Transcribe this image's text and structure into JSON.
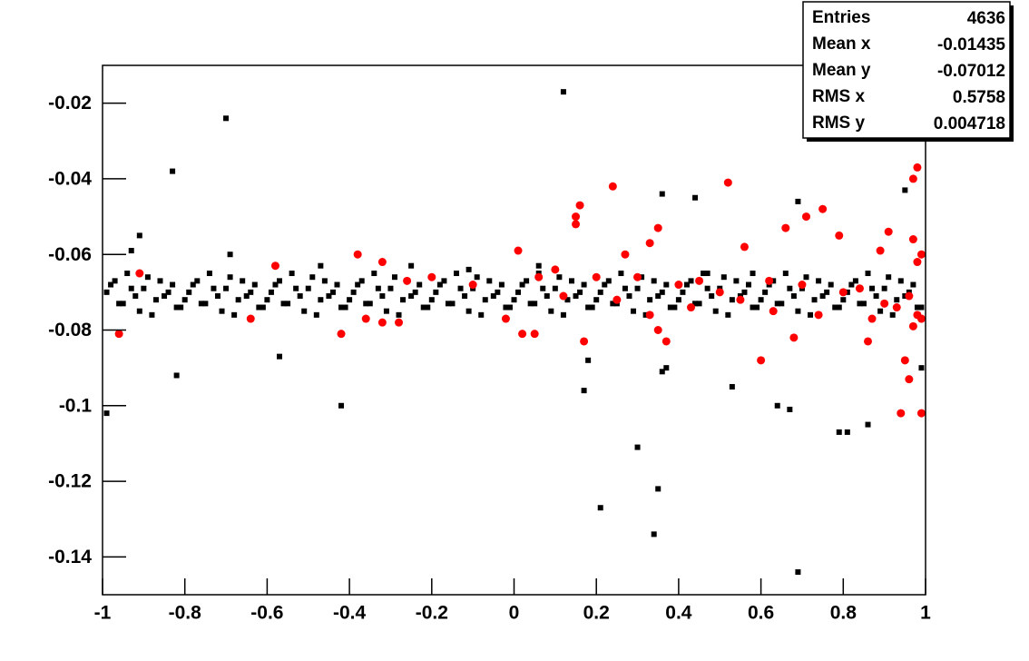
{
  "chart_data": {
    "type": "scatter",
    "xlim": [
      -1,
      1
    ],
    "ylim": [
      -0.15,
      -0.01
    ],
    "xticks": [
      -1,
      -0.8,
      -0.6,
      -0.4,
      -0.2,
      0,
      0.2,
      0.4,
      0.6,
      0.8,
      1
    ],
    "yticks": [
      -0.02,
      -0.04,
      -0.06,
      -0.08,
      -0.1,
      -0.12,
      -0.14
    ],
    "stats": [
      {
        "label": "Entries",
        "value": 4636
      },
      {
        "label": "Mean x",
        "value": -0.01435
      },
      {
        "label": "Mean y",
        "value": -0.07012
      },
      {
        "label": "RMS x",
        "value": 0.5758
      },
      {
        "label": "RMS y",
        "value": 0.004718
      }
    ],
    "series": [
      {
        "color": "#000000",
        "marker": "square",
        "x": [
          -0.99,
          -0.97,
          -0.95,
          -0.93,
          -0.91,
          -0.89,
          -0.87,
          -0.85,
          -0.83,
          -0.81,
          -0.79,
          -0.77,
          -0.75,
          -0.73,
          -0.71,
          -0.69,
          -0.67,
          -0.65,
          -0.63,
          -0.61,
          -0.59,
          -0.57,
          -0.55,
          -0.53,
          -0.51,
          -0.49,
          -0.47,
          -0.45,
          -0.43,
          -0.41,
          -0.39,
          -0.37,
          -0.35,
          -0.33,
          -0.31,
          -0.29,
          -0.27,
          -0.25,
          -0.23,
          -0.21,
          -0.19,
          -0.17,
          -0.15,
          -0.13,
          -0.11,
          -0.09,
          -0.07,
          -0.05,
          -0.03,
          -0.01,
          0.01,
          0.03,
          0.05,
          0.07,
          0.09,
          0.11,
          0.13,
          0.15,
          0.17,
          0.19,
          0.21,
          0.23,
          0.25,
          0.27,
          0.29,
          0.31,
          0.33,
          0.35,
          0.37,
          0.39,
          0.41,
          0.43,
          0.45,
          0.47,
          0.49,
          0.51,
          0.53,
          0.55,
          0.57,
          0.59,
          0.61,
          0.63,
          0.65,
          0.67,
          0.69,
          0.71,
          0.73,
          0.75,
          0.77,
          0.79,
          0.81,
          0.83,
          0.85,
          0.87,
          0.89,
          0.91,
          0.93,
          0.95,
          0.97,
          0.99
        ],
        "y": [
          -0.07,
          -0.067,
          -0.073,
          -0.069,
          -0.075,
          -0.066,
          -0.072,
          -0.071,
          -0.068,
          -0.074,
          -0.07,
          -0.067,
          -0.073,
          -0.069,
          -0.075,
          -0.066,
          -0.072,
          -0.071,
          -0.068,
          -0.074,
          -0.07,
          -0.067,
          -0.073,
          -0.069,
          -0.075,
          -0.066,
          -0.072,
          -0.071,
          -0.068,
          -0.074,
          -0.07,
          -0.067,
          -0.073,
          -0.069,
          -0.075,
          -0.066,
          -0.072,
          -0.071,
          -0.068,
          -0.074,
          -0.07,
          -0.067,
          -0.073,
          -0.069,
          -0.075,
          -0.066,
          -0.072,
          -0.071,
          -0.068,
          -0.074,
          -0.07,
          -0.067,
          -0.073,
          -0.069,
          -0.075,
          -0.066,
          -0.072,
          -0.071,
          -0.068,
          -0.074,
          -0.07,
          -0.067,
          -0.073,
          -0.069,
          -0.075,
          -0.066,
          -0.072,
          -0.071,
          -0.068,
          -0.074,
          -0.07,
          -0.067,
          -0.073,
          -0.069,
          -0.075,
          -0.066,
          -0.072,
          -0.071,
          -0.068,
          -0.074,
          -0.07,
          -0.067,
          -0.073,
          -0.069,
          -0.075,
          -0.066,
          -0.072,
          -0.071,
          -0.068,
          -0.074,
          -0.07,
          -0.067,
          -0.073,
          -0.069,
          -0.075,
          -0.066,
          -0.072,
          -0.071,
          -0.068,
          -0.074
        ]
      },
      {
        "color": "#000000",
        "marker": "square",
        "x": [
          -0.98,
          -0.96,
          -0.94,
          -0.92,
          -0.9,
          -0.88,
          -0.86,
          -0.84,
          -0.82,
          -0.8,
          -0.78,
          -0.76,
          -0.74,
          -0.72,
          -0.7,
          -0.68,
          -0.66,
          -0.64,
          -0.62,
          -0.6,
          -0.58,
          -0.56,
          -0.54,
          -0.52,
          -0.5,
          -0.48,
          -0.46,
          -0.44,
          -0.42,
          -0.4,
          -0.38,
          -0.36,
          -0.34,
          -0.32,
          -0.3,
          -0.28,
          -0.26,
          -0.24,
          -0.22,
          -0.2,
          -0.18,
          -0.16,
          -0.14,
          -0.12,
          -0.1,
          -0.08,
          -0.06,
          -0.04,
          -0.02,
          0,
          0.02,
          0.04,
          0.06,
          0.08,
          0.1,
          0.12,
          0.14,
          0.16,
          0.18,
          0.2,
          0.22,
          0.24,
          0.26,
          0.28,
          0.3,
          0.32,
          0.34,
          0.36,
          0.38,
          0.4,
          0.42,
          0.44,
          0.46,
          0.48,
          0.5,
          0.52,
          0.54,
          0.56,
          0.58,
          0.6,
          0.62,
          0.64,
          0.66,
          0.68,
          0.7,
          0.72,
          0.74,
          0.76,
          0.78,
          0.8,
          0.82,
          0.84,
          0.86,
          0.88,
          0.9,
          0.92,
          0.94,
          0.96,
          0.98
        ],
        "y": [
          -0.068,
          -0.073,
          -0.065,
          -0.071,
          -0.069,
          -0.076,
          -0.067,
          -0.07,
          -0.074,
          -0.072,
          -0.068,
          -0.073,
          -0.065,
          -0.071,
          -0.069,
          -0.076,
          -0.067,
          -0.07,
          -0.074,
          -0.072,
          -0.068,
          -0.073,
          -0.065,
          -0.071,
          -0.069,
          -0.076,
          -0.067,
          -0.07,
          -0.074,
          -0.072,
          -0.068,
          -0.073,
          -0.065,
          -0.071,
          -0.069,
          -0.076,
          -0.067,
          -0.07,
          -0.074,
          -0.072,
          -0.068,
          -0.073,
          -0.065,
          -0.071,
          -0.069,
          -0.076,
          -0.067,
          -0.07,
          -0.074,
          -0.072,
          -0.068,
          -0.073,
          -0.065,
          -0.071,
          -0.069,
          -0.076,
          -0.067,
          -0.07,
          -0.074,
          -0.072,
          -0.068,
          -0.073,
          -0.065,
          -0.071,
          -0.069,
          -0.076,
          -0.067,
          -0.07,
          -0.074,
          -0.072,
          -0.068,
          -0.073,
          -0.065,
          -0.071,
          -0.069,
          -0.076,
          -0.067,
          -0.07,
          -0.074,
          -0.072,
          -0.068,
          -0.073,
          -0.065,
          -0.071,
          -0.069,
          -0.076,
          -0.067,
          -0.07,
          -0.074,
          -0.072,
          -0.068,
          -0.073,
          -0.065,
          -0.071,
          -0.069,
          -0.076,
          -0.067,
          -0.07,
          -0.074
        ]
      },
      {
        "color": "#000000",
        "marker": "square",
        "x": [
          -0.7,
          -0.83,
          0.12,
          -0.82,
          -0.42,
          -0.99,
          0.21,
          0.35,
          0.34,
          0.69,
          0.3,
          0.17,
          0.53,
          0.67,
          0.79,
          0.81,
          0.86,
          0.99,
          0.37,
          0.36,
          0.95,
          0.36,
          0.44,
          0.69,
          -0.91,
          -0.93,
          -0.57,
          0.18,
          -0.11,
          -0.25,
          -0.69,
          0.64,
          0.58,
          0.47,
          0.06,
          -0.47
        ],
        "y": [
          -0.024,
          -0.038,
          -0.017,
          -0.092,
          -0.1,
          -0.102,
          -0.127,
          -0.122,
          -0.134,
          -0.144,
          -0.111,
          -0.096,
          -0.095,
          -0.101,
          -0.107,
          -0.107,
          -0.105,
          -0.09,
          -0.09,
          -0.091,
          -0.043,
          -0.044,
          -0.045,
          -0.046,
          -0.055,
          -0.059,
          -0.087,
          -0.088,
          -0.064,
          -0.063,
          -0.06,
          -0.1,
          -0.065,
          -0.065,
          -0.063,
          -0.063
        ]
      },
      {
        "color": "#ff0000",
        "marker": "circle",
        "x": [
          0.24,
          0.52,
          0.98,
          0.97,
          0.15,
          0.16,
          0.15,
          0.33,
          0.35,
          0.71,
          0.75,
          0.66,
          0.79,
          0.91,
          0.97,
          0.99,
          0.98,
          0.89,
          0.56,
          0.6,
          0.94,
          0.99,
          0.95,
          0.96,
          -0.38,
          -0.58,
          -0.32,
          0.01,
          0.27,
          0.17,
          0.37,
          0.35,
          0.02,
          0.05,
          -0.96,
          -0.64,
          -0.36,
          -0.32,
          -0.28,
          -0.42,
          0.68,
          0.86,
          -0.91,
          -0.02,
          0.1,
          0.2,
          0.3,
          0.4,
          0.45,
          0.5,
          0.55,
          0.62,
          0.7,
          0.8,
          0.84,
          0.9,
          0.93,
          0.96,
          0.98,
          0.97,
          0.99,
          0.12,
          0.25,
          0.33,
          0.43,
          0.63,
          0.74,
          0.87,
          -0.2,
          -0.1,
          0.06,
          -0.26
        ],
        "y": [
          -0.042,
          -0.041,
          -0.037,
          -0.04,
          -0.05,
          -0.047,
          -0.052,
          -0.057,
          -0.053,
          -0.05,
          -0.048,
          -0.053,
          -0.055,
          -0.054,
          -0.056,
          -0.06,
          -0.062,
          -0.059,
          -0.058,
          -0.088,
          -0.102,
          -0.102,
          -0.088,
          -0.093,
          -0.06,
          -0.063,
          -0.062,
          -0.059,
          -0.06,
          -0.083,
          -0.083,
          -0.08,
          -0.081,
          -0.081,
          -0.081,
          -0.077,
          -0.077,
          -0.078,
          -0.078,
          -0.081,
          -0.082,
          -0.083,
          -0.065,
          -0.077,
          -0.064,
          -0.066,
          -0.066,
          -0.068,
          -0.067,
          -0.07,
          -0.072,
          -0.067,
          -0.068,
          -0.07,
          -0.069,
          -0.073,
          -0.074,
          -0.071,
          -0.076,
          -0.079,
          -0.077,
          -0.071,
          -0.072,
          -0.076,
          -0.074,
          -0.075,
          -0.076,
          -0.077,
          -0.066,
          -0.068,
          -0.066,
          -0.067
        ]
      }
    ]
  }
}
